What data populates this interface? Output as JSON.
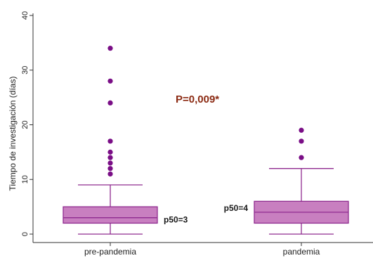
{
  "chart_data": {
    "type": "box",
    "title": "",
    "xlabel": "",
    "ylabel": "Tiempo de investigación (días)",
    "ylim": [
      0,
      40
    ],
    "yticks": [
      0,
      10,
      20,
      30,
      40
    ],
    "grid": false,
    "colors": {
      "box_fill": "#c87fc0",
      "box_stroke": "#8f2a8f",
      "outlier": "#7a0e86",
      "axis": "#333333",
      "pvalue": "#8b2a12"
    },
    "categories": [
      "pre-pandemia",
      "pandemia"
    ],
    "boxes": [
      {
        "category": "pre-pandemia",
        "min": 0,
        "q1": 2,
        "median": 3,
        "q3": 5,
        "whisker_high": 9,
        "outliers": [
          11,
          12,
          13,
          14,
          15,
          17,
          24,
          28,
          34
        ],
        "median_label": "p50=3"
      },
      {
        "category": "pandemia",
        "min": 0,
        "q1": 2,
        "median": 4,
        "q3": 6,
        "whisker_high": 12,
        "outliers": [
          14,
          17,
          19
        ],
        "median_label": "p50=4"
      }
    ],
    "annotation": "P=0,009*"
  }
}
